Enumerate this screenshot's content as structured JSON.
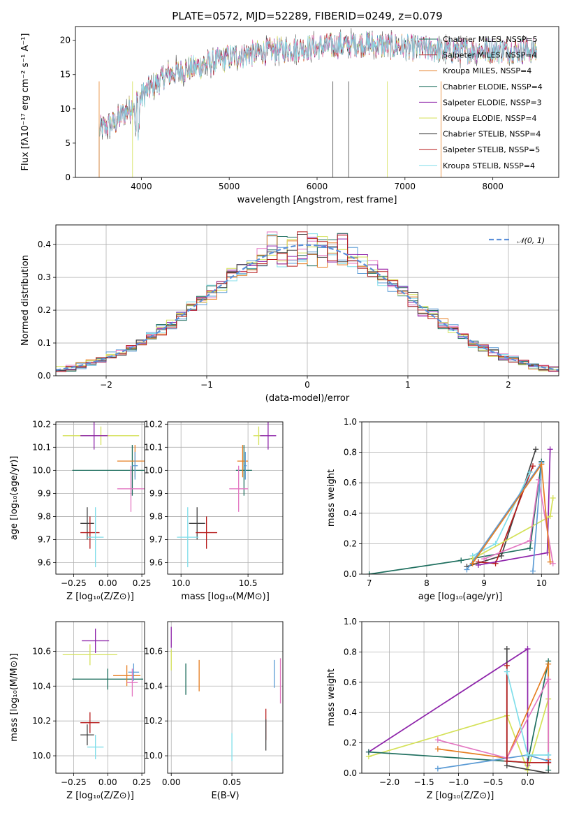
{
  "colors": [
    "#5b9bd5",
    "#2e7d32",
    "#e67e22",
    "#1f6f5f",
    "#8e24aa",
    "#d4e157",
    "#424242",
    "#b71c1c",
    "#80deea",
    "#e377c2"
  ],
  "chart_data": [
    {
      "id": "spectrum",
      "type": "line",
      "title": "PLATE=0572, MJD=52289, FIBERID=0249, z=0.079",
      "xlabel": "wavelength [Angstrom, rest frame]",
      "ylabel": "Flux [fλ10⁻¹⁷ erg cm⁻² s⁻¹ A⁻¹]",
      "xlim": [
        3250,
        8750
      ],
      "ylim": [
        0,
        22
      ],
      "xticks": [
        4000,
        5000,
        6000,
        7000,
        8000
      ],
      "yticks": [
        0,
        5,
        10,
        15,
        20
      ],
      "legend_position": "top-right",
      "continuum_x": [
        3520,
        3700,
        3900,
        4100,
        4300,
        4600,
        5000,
        5500,
        6000,
        6500,
        7000,
        7400
      ],
      "continuum_y": [
        7,
        8,
        10.5,
        13,
        15,
        16,
        17.5,
        18.5,
        19,
        19.5,
        19,
        18.5
      ],
      "series": [
        {
          "name": "Chabrier MILES, N_SSP=5"
        },
        {
          "name": "Salpeter MILES, N_SSP=4"
        },
        {
          "name": "Kroupa MILES, N_SSP=4"
        },
        {
          "name": "Chabrier ELODIE, N_SSP=4"
        },
        {
          "name": "Salpeter ELODIE, N_SSP=3"
        },
        {
          "name": "Kroupa ELODIE, N_SSP=4"
        },
        {
          "name": "Chabrier STELIB, N_SSP=4"
        },
        {
          "name": "Salpeter STELIB, N_SSP=5"
        },
        {
          "name": "Kroupa STELIB, N_SSP=4"
        }
      ]
    },
    {
      "id": "residuals",
      "type": "area",
      "xlabel": "(data-model)/error",
      "ylabel": "Normed distribution",
      "xlim": [
        -2.5,
        2.5
      ],
      "ylim": [
        0,
        0.46
      ],
      "xticks": [
        -2,
        -1,
        0,
        1,
        2
      ],
      "yticks": [
        0.0,
        0.1,
        0.2,
        0.3,
        0.4
      ],
      "legend": "𝒩(0, 1)",
      "legend_position": "top-right",
      "bin_width": 0.1
    },
    {
      "id": "age_Z",
      "type": "scatter",
      "xlabel": "Z [log₁₀(Z/Z⊙)]",
      "ylabel": "age  [log₁₀(age/yr)]",
      "xlim": [
        -0.38,
        0.27
      ],
      "ylim": [
        9.55,
        10.21
      ],
      "xticks": [
        -0.25,
        0.0,
        0.25
      ],
      "xticklabels": [
        "−0.25",
        "0.00",
        "0.25"
      ],
      "yticks": [
        9.6,
        9.7,
        9.8,
        9.9,
        10.0,
        10.1,
        10.2
      ],
      "points": [
        {
          "x": 0.18,
          "y": 10.0,
          "xerr": 0.44,
          "yerr": 0.11,
          "c": 3
        },
        {
          "x": 0.2,
          "y": 10.04,
          "xerr": 0.13,
          "yerr": 0.07,
          "c": 2
        },
        {
          "x": 0.2,
          "y": 10.02,
          "xerr": 0.02,
          "yerr": 0.06,
          "c": 0
        },
        {
          "x": 0.17,
          "y": 9.92,
          "xerr": 0.1,
          "yerr": 0.1,
          "c": 9
        },
        {
          "x": -0.05,
          "y": 10.15,
          "xerr": 0.28,
          "yerr": 0.04,
          "c": 5
        },
        {
          "x": -0.1,
          "y": 10.15,
          "xerr": 0.1,
          "yerr": 0.06,
          "c": 4
        },
        {
          "x": -0.15,
          "y": 9.77,
          "xerr": 0.05,
          "yerr": 0.07,
          "c": 6
        },
        {
          "x": -0.13,
          "y": 9.73,
          "xerr": 0.07,
          "yerr": 0.07,
          "c": 7
        },
        {
          "x": -0.09,
          "y": 9.71,
          "xerr": 0.06,
          "yerr": 0.13,
          "c": 8
        }
      ]
    },
    {
      "id": "age_mass",
      "type": "scatter",
      "xlabel": "mass [log₁₀(M/M⊙)]",
      "xlim": [
        9.9,
        10.76
      ],
      "ylim": [
        9.55,
        10.21
      ],
      "xticks": [
        10.0,
        10.5
      ],
      "xticklabels": [
        "10.0",
        "10.5"
      ],
      "yticks": [
        9.6,
        9.7,
        9.8,
        9.9,
        10.0,
        10.1,
        10.2
      ],
      "points": [
        {
          "x": 10.47,
          "y": 10.0,
          "xerr": 0.06,
          "yerr": 0.11,
          "c": 3
        },
        {
          "x": 10.46,
          "y": 10.04,
          "xerr": 0.04,
          "yerr": 0.07,
          "c": 2
        },
        {
          "x": 10.48,
          "y": 10.02,
          "xerr": 0.01,
          "yerr": 0.06,
          "c": 0
        },
        {
          "x": 10.43,
          "y": 9.92,
          "xerr": 0.07,
          "yerr": 0.1,
          "c": 9
        },
        {
          "x": 10.58,
          "y": 10.15,
          "xerr": 0.04,
          "yerr": 0.04,
          "c": 5
        },
        {
          "x": 10.65,
          "y": 10.15,
          "xerr": 0.06,
          "yerr": 0.06,
          "c": 4
        },
        {
          "x": 10.12,
          "y": 9.77,
          "xerr": 0.06,
          "yerr": 0.07,
          "c": 6
        },
        {
          "x": 10.19,
          "y": 9.73,
          "xerr": 0.08,
          "yerr": 0.07,
          "c": 7
        },
        {
          "x": 10.05,
          "y": 9.71,
          "xerr": 0.08,
          "yerr": 0.13,
          "c": 8
        }
      ]
    },
    {
      "id": "mw_age",
      "type": "line",
      "xlabel": "age  [log₁₀(age/yr)]",
      "ylabel": "mass weight",
      "xlim": [
        6.87,
        10.3
      ],
      "ylim": [
        0,
        1.0
      ],
      "xticks": [
        7,
        8,
        9,
        10
      ],
      "yticks": [
        0.0,
        0.2,
        0.4,
        0.6,
        0.8,
        1.0
      ],
      "series": [
        {
          "c": 3,
          "x": [
            7.0,
            8.6,
            9.8,
            10.0
          ],
          "y": [
            0.0,
            0.09,
            0.17,
            0.74
          ]
        },
        {
          "c": 6,
          "x": [
            8.7,
            9.3,
            9.9
          ],
          "y": [
            0.05,
            0.12,
            0.82
          ]
        },
        {
          "c": 7,
          "x": [
            8.9,
            9.2,
            9.85
          ],
          "y": [
            0.08,
            0.07,
            0.71
          ]
        },
        {
          "c": 8,
          "x": [
            8.8,
            9.2,
            9.8
          ],
          "y": [
            0.12,
            0.2,
            0.67
          ]
        },
        {
          "c": 4,
          "x": [
            8.9,
            10.1,
            10.15
          ],
          "y": [
            0.06,
            0.14,
            0.82
          ]
        },
        {
          "c": 5,
          "x": [
            8.8,
            10.15,
            10.2
          ],
          "y": [
            0.1,
            0.38,
            0.5
          ]
        },
        {
          "c": 9,
          "x": [
            9.0,
            9.8,
            9.95,
            10.2
          ],
          "y": [
            0.1,
            0.22,
            0.62,
            0.07
          ]
        },
        {
          "c": 0,
          "x": [
            8.7,
            10.0,
            9.85
          ],
          "y": [
            0.03,
            0.73,
            0.02
          ]
        },
        {
          "c": 2,
          "x": [
            8.8,
            10.0,
            10.15
          ],
          "y": [
            0.07,
            0.72,
            0.08
          ]
        }
      ]
    },
    {
      "id": "mass_Z",
      "type": "scatter",
      "xlabel": "Z [log₁₀(Z/Z⊙)]",
      "ylabel": "mass [log₁₀(M/M⊙)]",
      "xlim": [
        -0.38,
        0.27
      ],
      "ylim": [
        9.9,
        10.77
      ],
      "xticks": [
        -0.25,
        0.0,
        0.25
      ],
      "xticklabels": [
        "−0.25",
        "0.00",
        "0.25"
      ],
      "yticks": [
        10.0,
        10.2,
        10.4,
        10.6
      ],
      "points": [
        {
          "x": 0.0,
          "y": 10.44,
          "xerr": 0.26,
          "yerr": 0.06,
          "c": 3
        },
        {
          "x": 0.14,
          "y": 10.46,
          "xerr": 0.1,
          "yerr": 0.06,
          "c": 2
        },
        {
          "x": 0.19,
          "y": 10.48,
          "xerr": 0.04,
          "yerr": 0.05,
          "c": 0
        },
        {
          "x": 0.18,
          "y": 10.42,
          "xerr": 0.04,
          "yerr": 0.08,
          "c": 9
        },
        {
          "x": -0.13,
          "y": 10.58,
          "xerr": 0.2,
          "yerr": 0.06,
          "c": 5
        },
        {
          "x": -0.09,
          "y": 10.66,
          "xerr": 0.1,
          "yerr": 0.07,
          "c": 4
        },
        {
          "x": -0.15,
          "y": 10.12,
          "xerr": 0.05,
          "yerr": 0.06,
          "c": 6
        },
        {
          "x": -0.13,
          "y": 10.19,
          "xerr": 0.07,
          "yerr": 0.06,
          "c": 7
        },
        {
          "x": -0.09,
          "y": 10.05,
          "xerr": 0.06,
          "yerr": 0.07,
          "c": 8
        }
      ]
    },
    {
      "id": "mass_EBV",
      "type": "scatter",
      "xlabel": "E(B-V)",
      "xlim": [
        -0.003,
        0.092
      ],
      "ylim": [
        9.9,
        10.77
      ],
      "xticks": [
        0.0,
        0.05
      ],
      "xticklabels": [
        "0.00",
        "0.05"
      ],
      "yticks": [
        10.0,
        10.2,
        10.4,
        10.6
      ],
      "points": [
        {
          "x": 0.0,
          "y": 10.68,
          "xerr": 0.0,
          "yerr": 0.06,
          "c": 4
        },
        {
          "x": 0.0,
          "y": 10.55,
          "xerr": 0.0,
          "yerr": 0.06,
          "c": 5
        },
        {
          "x": 0.012,
          "y": 10.44,
          "xerr": 0.0,
          "yerr": 0.09,
          "c": 3
        },
        {
          "x": 0.023,
          "y": 10.46,
          "xerr": 0.0,
          "yerr": 0.09,
          "c": 2
        },
        {
          "x": 0.05,
          "y": 10.05,
          "xerr": 0.0,
          "yerr": 0.08,
          "c": 8
        },
        {
          "x": 0.078,
          "y": 10.18,
          "xerr": 0.0,
          "yerr": 0.09,
          "c": 7
        },
        {
          "x": 0.078,
          "y": 10.12,
          "xerr": 0.0,
          "yerr": 0.09,
          "c": 6
        },
        {
          "x": 0.085,
          "y": 10.47,
          "xerr": 0.0,
          "yerr": 0.08,
          "c": 0
        },
        {
          "x": 0.09,
          "y": 10.43,
          "xerr": 0.0,
          "yerr": 0.13,
          "c": 9
        }
      ]
    },
    {
      "id": "mw_Z",
      "type": "line",
      "xlabel": "Z [log₁₀(Z/Z⊙)]",
      "ylabel": "mass weight",
      "xlim": [
        -2.4,
        0.45
      ],
      "ylim": [
        0,
        1.0
      ],
      "xticks": [
        -2.0,
        -1.5,
        -1.0,
        -0.5,
        0.0
      ],
      "xticklabels": [
        "−2.0",
        "−1.5",
        "−1.0",
        "−0.5",
        "0.0"
      ],
      "yticks": [
        0.0,
        0.2,
        0.4,
        0.6,
        0.8,
        1.0
      ],
      "series": [
        {
          "c": 4,
          "x": [
            -2.3,
            0.0,
            0.0
          ],
          "y": [
            0.14,
            0.82,
            0.05
          ]
        },
        {
          "c": 5,
          "x": [
            -2.3,
            -0.3,
            0.0,
            0.3
          ],
          "y": [
            0.11,
            0.38,
            0.02,
            0.49
          ]
        },
        {
          "c": 3,
          "x": [
            -2.3,
            0.0,
            0.3,
            0.3
          ],
          "y": [
            0.14,
            0.07,
            0.74,
            0.02
          ]
        },
        {
          "c": 2,
          "x": [
            -1.3,
            -0.3,
            0.3,
            0.3
          ],
          "y": [
            0.16,
            0.1,
            0.72,
            0.09
          ]
        },
        {
          "c": 0,
          "x": [
            -1.3,
            0.0,
            0.3,
            0.3
          ],
          "y": [
            0.03,
            0.12,
            0.08,
            0.12
          ]
        },
        {
          "c": 9,
          "x": [
            -1.3,
            -0.3,
            0.3,
            0.3
          ],
          "y": [
            0.22,
            0.1,
            0.62,
            0.07
          ]
        },
        {
          "c": 6,
          "x": [
            -0.3,
            -0.3,
            0.3
          ],
          "y": [
            0.82,
            0.05,
            0.0
          ]
        },
        {
          "c": 7,
          "x": [
            -0.3,
            -0.3,
            0.0,
            0.3
          ],
          "y": [
            0.71,
            0.08,
            0.07,
            0.07
          ]
        },
        {
          "c": 8,
          "x": [
            -0.3,
            0.0,
            0.3
          ],
          "y": [
            0.67,
            0.12,
            0.12
          ]
        }
      ]
    }
  ]
}
